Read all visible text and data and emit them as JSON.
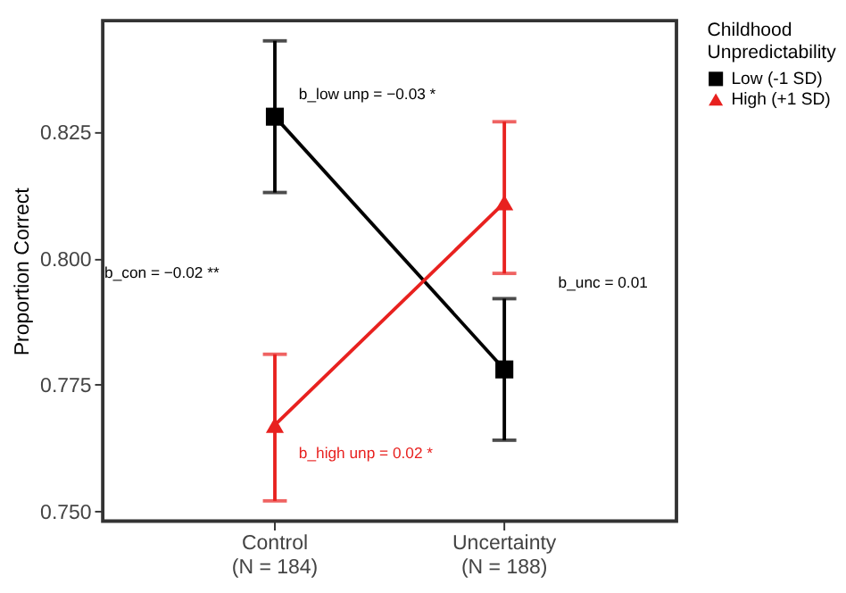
{
  "chart_data": {
    "type": "line",
    "ylabel": "Proportion Correct",
    "legend_title": "Childhood\nUnpredictability",
    "categories": [
      "Control\n(N = 184)",
      "Uncertainty\n(N = 188)"
    ],
    "series": [
      {
        "name": "Low (-1 SD)",
        "color": "#000000",
        "marker": "square",
        "values": [
          0.828,
          0.778
        ],
        "errors": [
          [
            0.813,
            0.843
          ],
          [
            0.764,
            0.792
          ]
        ]
      },
      {
        "name": "High (+1 SD)",
        "color": "#e8211f",
        "marker": "triangle",
        "values": [
          0.767,
          0.811
        ],
        "errors": [
          [
            0.752,
            0.781
          ],
          [
            0.797,
            0.827
          ]
        ]
      }
    ],
    "ylim": [
      0.748,
      0.847
    ],
    "yticks": [
      {
        "value": 0.75,
        "label": "0.750"
      },
      {
        "value": 0.775,
        "label": "0.775"
      },
      {
        "value": 0.8,
        "label": "0.800"
      },
      {
        "value": 0.825,
        "label": "0.825"
      }
    ],
    "grid": false,
    "legend": "right",
    "annotations": [
      {
        "text": "b_low unp = −0.03 *",
        "x": "Control\n(N = 184)",
        "y": 0.8325
      },
      {
        "text": "b_high unp = 0.02 *",
        "x": "Control\n(N = 184)",
        "y": 0.7615
      },
      "b_con = −0.02 **",
      "b_unc = 0.01"
    ]
  }
}
